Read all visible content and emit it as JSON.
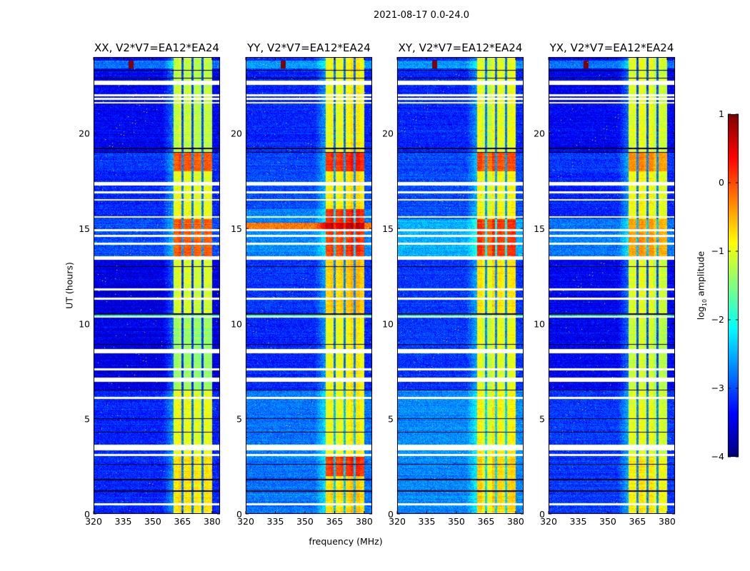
{
  "suptitle": "2021-08-17 0.0-24.0",
  "chart_data": {
    "type": "heatmap",
    "title": "2021-08-17 0.0-24.0",
    "xlabel": "frequency (MHz)",
    "ylabel": "UT (hours)",
    "xlim": [
      320,
      384
    ],
    "ylim": [
      0,
      24
    ],
    "xticks": [
      320,
      335,
      350,
      365,
      380
    ],
    "yticks": [
      0,
      5,
      10,
      15,
      20
    ],
    "colorbar": {
      "label_prefix": "log",
      "label_sub": "10",
      "label_suffix": " amplitude",
      "colormap": "jet",
      "range": [
        -4,
        1
      ],
      "ticks": [
        1,
        0,
        -1,
        -2,
        -3,
        -4
      ]
    },
    "band_mhz": [
      360.5,
      380
    ],
    "band_gaps_mhz": [
      365,
      370,
      375
    ],
    "flagged_hours": [
      0.5,
      3.1,
      3.4,
      3.5,
      3.6,
      6.1,
      7.0,
      7.1,
      7.6,
      8.5,
      8.6,
      10.35,
      11.3,
      11.8,
      13.4,
      13.5,
      14.2,
      14.6,
      14.9,
      15.6,
      16.5,
      16.9,
      17.3,
      17.4,
      21.6,
      21.8,
      22.0,
      22.6,
      22.7
    ],
    "dark_hours": [
      1.2,
      1.8,
      2.6,
      4.3,
      5.0,
      6.5,
      8.9,
      10.5,
      13.0,
      19.0,
      19.2,
      22.9,
      23.3
    ],
    "panels": [
      {
        "title": "XX, V2*V7=EA12*EA24",
        "segments": [
          {
            "t": [
              0,
              3
            ],
            "background": -3.2,
            "band": -0.8
          },
          {
            "t": [
              3,
              6.5
            ],
            "background": -3.2,
            "band": -1.0
          },
          {
            "t": [
              6.5,
              10.3
            ],
            "background": -3.5,
            "band": -1.4
          },
          {
            "t": [
              10.3,
              10.5
            ],
            "background": -2.2,
            "band": -1.5
          },
          {
            "t": [
              10.5,
              13.5
            ],
            "background": -3.5,
            "band": -1.1
          },
          {
            "t": [
              13.5,
              15.5
            ],
            "background": -3.0,
            "band": -0.1
          },
          {
            "t": [
              15.5,
              18
            ],
            "background": -3.2,
            "band": -1.0
          },
          {
            "t": [
              18,
              19
            ],
            "background": -3.1,
            "band": -0.1
          },
          {
            "t": [
              19,
              24
            ],
            "background": -3.4,
            "band": -1.2
          }
        ]
      },
      {
        "title": "YY, V2*V7=EA12*EA24",
        "segments": [
          {
            "t": [
              0,
              2
            ],
            "background": -2.8,
            "band": -0.7
          },
          {
            "t": [
              2,
              3
            ],
            "background": -2.8,
            "band": 0.1
          },
          {
            "t": [
              3,
              6.5
            ],
            "background": -2.8,
            "band": -0.9
          },
          {
            "t": [
              6.5,
              10.3
            ],
            "background": -3.2,
            "band": -0.9
          },
          {
            "t": [
              10.3,
              10.5
            ],
            "background": -2.0,
            "band": -1.0
          },
          {
            "t": [
              10.5,
              13.5
            ],
            "background": -3.1,
            "band": -0.6
          },
          {
            "t": [
              13.5,
              14.9
            ],
            "background": -2.7,
            "band": 0.1
          },
          {
            "t": [
              14.9,
              15.3
            ],
            "background": -0.2,
            "band": 0.6
          },
          {
            "t": [
              15.3,
              16
            ],
            "background": -2.7,
            "band": 0.2
          },
          {
            "t": [
              16,
              18
            ],
            "background": -3.0,
            "band": -0.8
          },
          {
            "t": [
              18,
              19
            ],
            "background": -3.0,
            "band": 0.2
          },
          {
            "t": [
              19,
              24
            ],
            "background": -3.2,
            "band": -0.9
          }
        ]
      },
      {
        "title": "XY, V2*V7=EA12*EA24",
        "segments": [
          {
            "t": [
              0,
              3
            ],
            "background": -2.7,
            "band": -0.7
          },
          {
            "t": [
              3,
              6.5
            ],
            "background": -2.7,
            "band": -0.9
          },
          {
            "t": [
              6.5,
              10.3
            ],
            "background": -3.1,
            "band": -1.0
          },
          {
            "t": [
              10.3,
              10.5
            ],
            "background": -2.2,
            "band": -1.1
          },
          {
            "t": [
              10.5,
              13.5
            ],
            "background": -3.1,
            "band": -0.8
          },
          {
            "t": [
              13.5,
              15.5
            ],
            "background": -2.5,
            "band": 0.1
          },
          {
            "t": [
              15.5,
              18
            ],
            "background": -3.0,
            "band": -0.9
          },
          {
            "t": [
              18,
              19
            ],
            "background": -3.0,
            "band": 0.0
          },
          {
            "t": [
              19,
              24
            ],
            "background": -3.2,
            "band": -1.0
          }
        ]
      },
      {
        "title": "YX, V2*V7=EA12*EA24",
        "segments": [
          {
            "t": [
              0,
              3
            ],
            "background": -3.1,
            "band": -0.9
          },
          {
            "t": [
              3,
              6.5
            ],
            "background": -3.1,
            "band": -1.1
          },
          {
            "t": [
              6.5,
              10.3
            ],
            "background": -3.4,
            "band": -1.2
          },
          {
            "t": [
              10.3,
              10.5
            ],
            "background": -2.3,
            "band": -1.3
          },
          {
            "t": [
              10.5,
              13.5
            ],
            "background": -3.4,
            "band": -1.1
          },
          {
            "t": [
              13.5,
              15.5
            ],
            "background": -2.8,
            "band": -0.5
          },
          {
            "t": [
              15.5,
              18
            ],
            "background": -3.2,
            "band": -1.0
          },
          {
            "t": [
              18,
              19
            ],
            "background": -3.1,
            "band": -0.4
          },
          {
            "t": [
              19,
              24
            ],
            "background": -3.4,
            "band": -1.1
          }
        ]
      }
    ]
  }
}
